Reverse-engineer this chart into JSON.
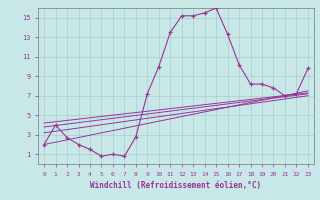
{
  "x": [
    0,
    1,
    2,
    3,
    4,
    5,
    6,
    7,
    8,
    9,
    10,
    11,
    12,
    13,
    14,
    15,
    16,
    17,
    18,
    19,
    20,
    21,
    22,
    23
  ],
  "y_main": [
    2,
    4,
    2.7,
    2,
    1.5,
    0.8,
    1,
    0.8,
    2.8,
    7.2,
    10,
    13.5,
    15.2,
    15.2,
    15.5,
    16,
    13.3,
    10.2,
    8.2,
    8.2,
    7.8,
    7,
    7.2,
    9.8
  ],
  "line_color": "#993399",
  "bg_color": "#c8e8e8",
  "grid_color": "#aacccc",
  "axis_label_color": "#993399",
  "tick_color": "#993399",
  "xlabel": "Windchill (Refroidissement éolien,°C)",
  "ylim": [
    0,
    16
  ],
  "xlim": [
    -0.5,
    23.5
  ],
  "yticks": [
    1,
    3,
    5,
    7,
    9,
    11,
    13,
    15
  ],
  "xticks": [
    0,
    1,
    2,
    3,
    4,
    5,
    6,
    7,
    8,
    9,
    10,
    11,
    12,
    13,
    14,
    15,
    16,
    17,
    18,
    19,
    20,
    21,
    22,
    23
  ],
  "regression_lines": [
    {
      "x0": 0,
      "y0": 2.0,
      "x1": 23,
      "y1": 7.5
    },
    {
      "x0": 0,
      "y0": 3.2,
      "x1": 23,
      "y1": 7.0
    },
    {
      "x0": 0,
      "y0": 3.8,
      "x1": 23,
      "y1": 7.2
    },
    {
      "x0": 0,
      "y0": 4.2,
      "x1": 23,
      "y1": 7.3
    }
  ]
}
